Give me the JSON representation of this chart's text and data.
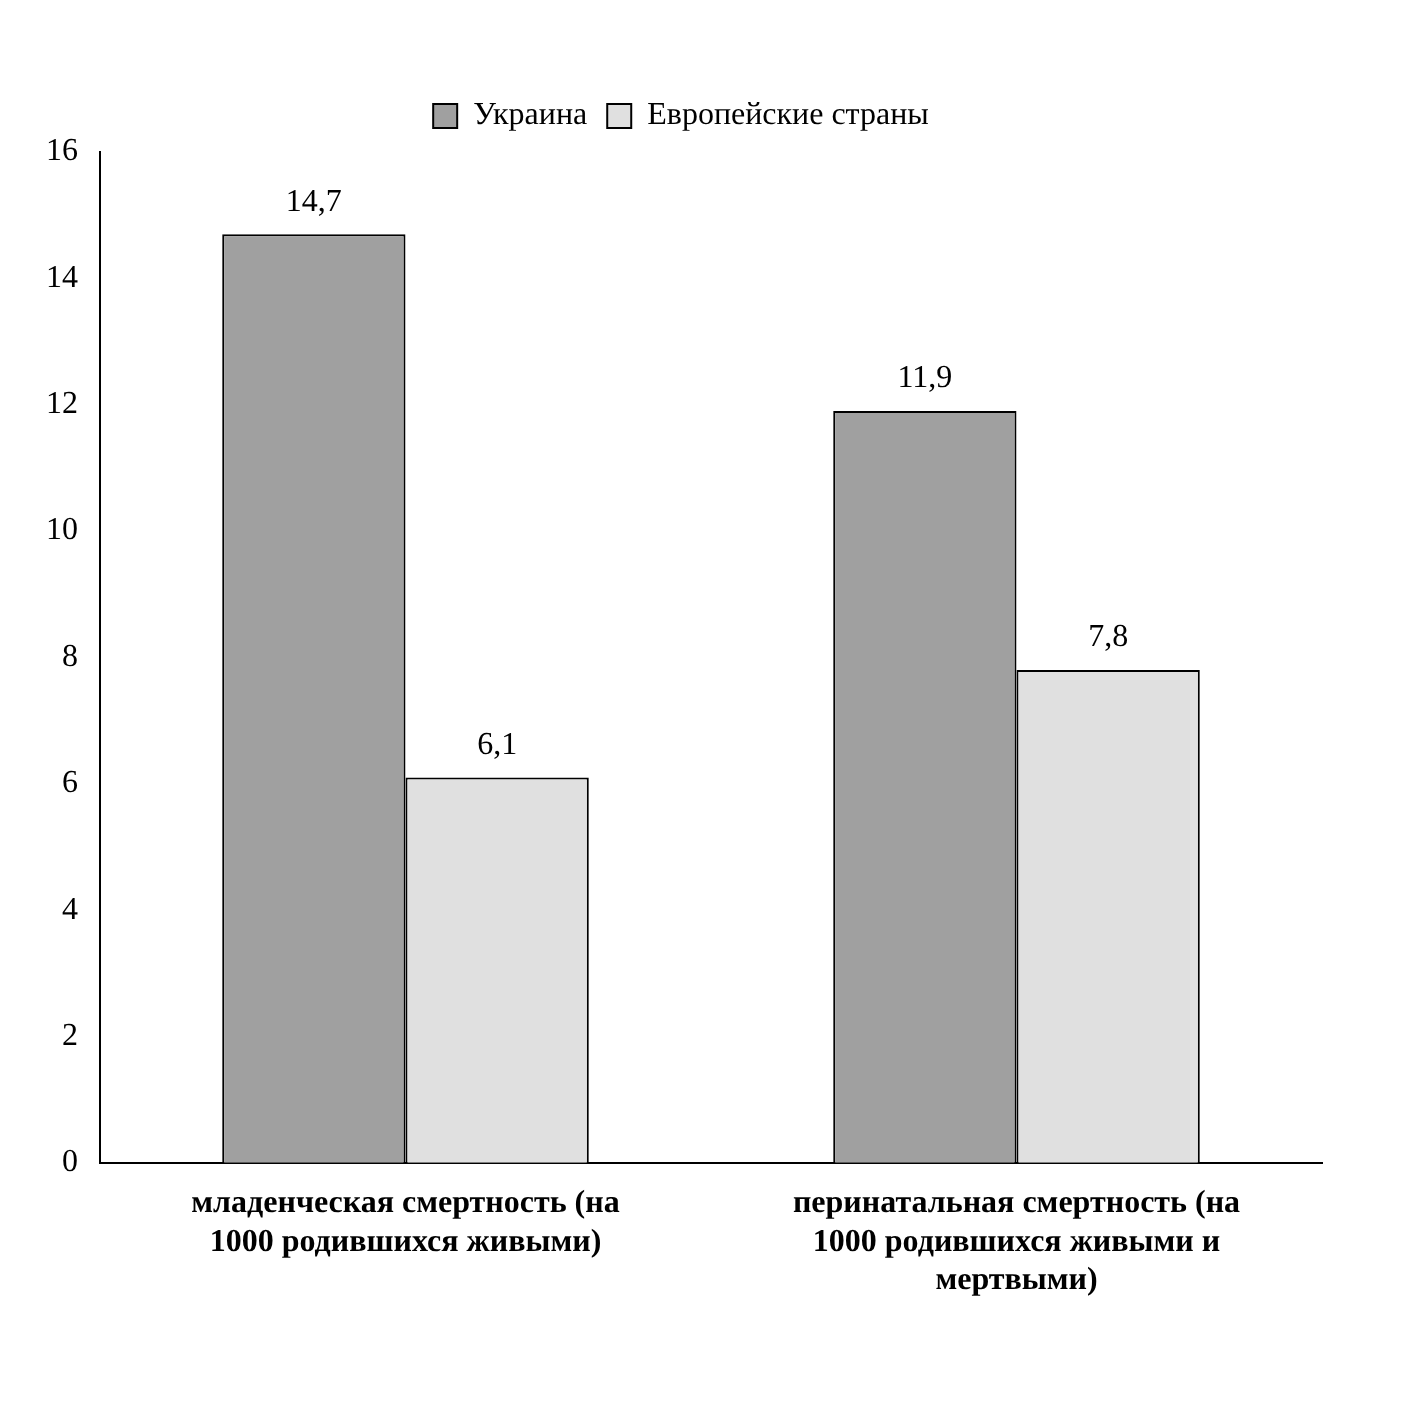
{
  "chart_data": {
    "type": "bar",
    "categories": [
      "младенческая смертность (на 1000 родившихся живыми)",
      "перинатальная смертность (на 1000 родившихся живыми и мертвыми)"
    ],
    "series": [
      {
        "name": "Украина",
        "color": "#a0a0a0",
        "values": [
          14.7,
          11.9
        ],
        "value_labels": [
          "14,7",
          "11,9"
        ]
      },
      {
        "name": "Европейские страны",
        "color": "#e0e0e0",
        "values": [
          6.1,
          7.8
        ],
        "value_labels": [
          "6,1",
          "7,8"
        ]
      }
    ],
    "ylim": [
      0,
      16
    ],
    "yticks": [
      0,
      2,
      4,
      6,
      8,
      10,
      12,
      14,
      16
    ],
    "grid": false,
    "legend": "top"
  }
}
